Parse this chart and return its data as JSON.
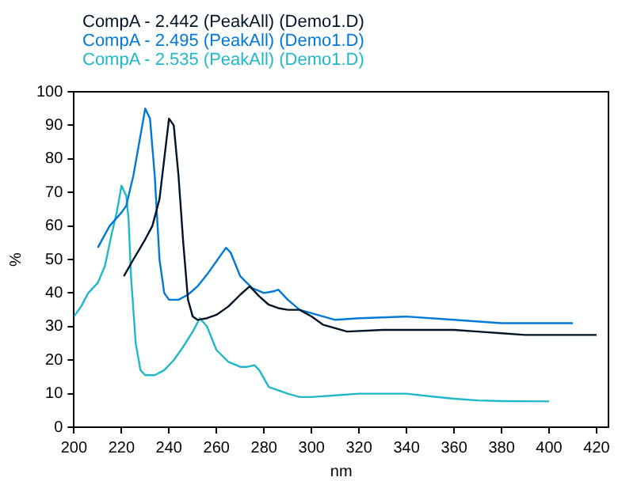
{
  "chart_data": {
    "type": "line",
    "xlabel": "nm",
    "ylabel": "%",
    "xlim": [
      200,
      425
    ],
    "xticks": [
      200,
      220,
      240,
      260,
      280,
      300,
      320,
      340,
      360,
      380,
      400,
      420
    ],
    "ylim": [
      0,
      100
    ],
    "yticks": [
      0,
      10,
      20,
      30,
      40,
      50,
      60,
      70,
      80,
      90,
      100
    ],
    "grid": false,
    "legend": "top left",
    "marker": "none",
    "line_style": "solid",
    "series": [
      {
        "name": "CompA - 2.442 (PeakAll)  (Demo1.D)",
        "color": "#001428",
        "x": [
          221,
          225,
          230,
          233,
          236,
          238,
          240,
          242,
          244,
          246,
          248,
          250,
          252,
          256,
          260,
          265,
          270,
          274,
          278,
          282,
          286,
          290,
          295,
          300,
          305,
          310,
          315,
          330,
          360,
          370,
          380,
          390,
          420
        ],
        "values": [
          45,
          50,
          56,
          60,
          68,
          80,
          92,
          90,
          75,
          55,
          38,
          33,
          32,
          32.5,
          33.5,
          36,
          39.5,
          42,
          39,
          36.5,
          35.5,
          35,
          35,
          33,
          30.5,
          29.5,
          28.5,
          29,
          29,
          28.5,
          28,
          27.5,
          27.5
        ]
      },
      {
        "name": "CompA - 2.495 (PeakAll)  (Demo1.D)",
        "color": "#0078d7",
        "x": [
          210,
          215,
          220,
          222,
          225,
          228,
          230,
          232,
          234,
          236,
          238,
          240,
          244,
          248,
          252,
          256,
          260,
          264,
          266,
          270,
          275,
          280,
          284,
          286,
          290,
          295,
          300,
          310,
          320,
          340,
          360,
          380,
          410
        ],
        "values": [
          53.5,
          60,
          64,
          66,
          75,
          87,
          95,
          92,
          75,
          50,
          40,
          38,
          38,
          39.5,
          42,
          45.5,
          49.5,
          53.5,
          52,
          45,
          41.5,
          40,
          40.5,
          41,
          38,
          35,
          34,
          32,
          32.5,
          33,
          32,
          31,
          31
        ]
      },
      {
        "name": "CompA - 2.535 (PeakAll)  (Demo1.D)",
        "color": "#20b8c8",
        "x": [
          200,
          203,
          206,
          210,
          213,
          216,
          218,
          220,
          222,
          223,
          224,
          226,
          228,
          230,
          234,
          238,
          242,
          246,
          250,
          253,
          256,
          260,
          265,
          270,
          273,
          276,
          278,
          282,
          286,
          290,
          295,
          300,
          310,
          320,
          330,
          340,
          350,
          360,
          370,
          380,
          400
        ],
        "values": [
          33,
          36,
          40,
          43,
          48,
          58,
          64,
          72,
          69,
          62,
          45,
          25,
          17,
          15.5,
          15.5,
          17,
          20,
          24,
          28.5,
          32.5,
          30,
          23,
          19.5,
          18,
          18,
          18.5,
          17,
          12,
          11,
          10,
          9,
          9,
          9.5,
          10,
          10,
          10,
          9.2,
          8.5,
          8,
          7.8,
          7.7
        ]
      }
    ]
  }
}
